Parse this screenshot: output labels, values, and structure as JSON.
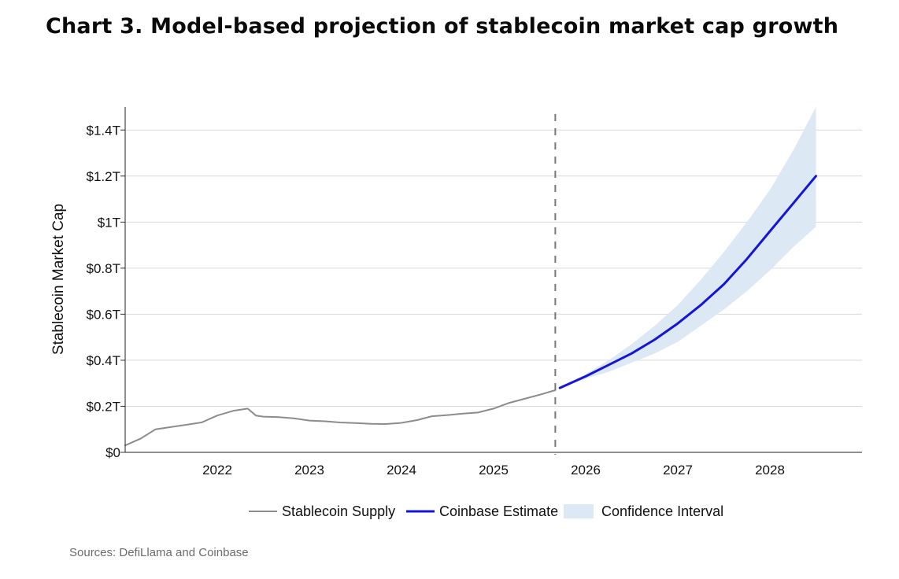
{
  "chart_data": {
    "type": "line",
    "title": "Chart 3. Model-based projection of stablecoin market cap growth",
    "ylabel": "Stablecoin Market Cap",
    "xlabel": "",
    "x_range": [
      2021.0,
      2029.0
    ],
    "ylim": [
      0,
      1.5
    ],
    "y_ticks": [
      {
        "value": 0,
        "label": "$0"
      },
      {
        "value": 0.2,
        "label": "$0.2T"
      },
      {
        "value": 0.4,
        "label": "$0.4T"
      },
      {
        "value": 0.6,
        "label": "$0.6T"
      },
      {
        "value": 0.8,
        "label": "$0.8T"
      },
      {
        "value": 1.0,
        "label": "$1T"
      },
      {
        "value": 1.2,
        "label": "$1.2T"
      },
      {
        "value": 1.4,
        "label": "$1.4T"
      }
    ],
    "x_ticks": [
      {
        "value": 2022,
        "label": "2022"
      },
      {
        "value": 2023,
        "label": "2023"
      },
      {
        "value": 2024,
        "label": "2024"
      },
      {
        "value": 2025,
        "label": "2025"
      },
      {
        "value": 2026,
        "label": "2026"
      },
      {
        "value": 2027,
        "label": "2027"
      },
      {
        "value": 2028,
        "label": "2028"
      }
    ],
    "grid": "horizontal",
    "legend_position": "bottom",
    "divider_x": 2025.67,
    "series": [
      {
        "name": "Stablecoin Supply",
        "color": "#8c8c8c",
        "points": [
          [
            2021.0,
            0.03
          ],
          [
            2021.17,
            0.06
          ],
          [
            2021.33,
            0.1
          ],
          [
            2021.5,
            0.11
          ],
          [
            2021.67,
            0.12
          ],
          [
            2021.83,
            0.13
          ],
          [
            2022.0,
            0.16
          ],
          [
            2022.17,
            0.18
          ],
          [
            2022.33,
            0.19
          ],
          [
            2022.42,
            0.16
          ],
          [
            2022.5,
            0.155
          ],
          [
            2022.67,
            0.153
          ],
          [
            2022.83,
            0.148
          ],
          [
            2023.0,
            0.138
          ],
          [
            2023.17,
            0.135
          ],
          [
            2023.33,
            0.13
          ],
          [
            2023.5,
            0.127
          ],
          [
            2023.67,
            0.124
          ],
          [
            2023.83,
            0.123
          ],
          [
            2024.0,
            0.128
          ],
          [
            2024.17,
            0.14
          ],
          [
            2024.33,
            0.157
          ],
          [
            2024.5,
            0.162
          ],
          [
            2024.67,
            0.168
          ],
          [
            2024.83,
            0.173
          ],
          [
            2025.0,
            0.19
          ],
          [
            2025.17,
            0.215
          ],
          [
            2025.33,
            0.232
          ],
          [
            2025.5,
            0.25
          ],
          [
            2025.67,
            0.27
          ]
        ]
      },
      {
        "name": "Coinbase Estimate",
        "color": "#1515d6",
        "points": [
          [
            2025.72,
            0.28
          ],
          [
            2026.0,
            0.33
          ],
          [
            2026.25,
            0.38
          ],
          [
            2026.5,
            0.43
          ],
          [
            2026.75,
            0.49
          ],
          [
            2027.0,
            0.56
          ],
          [
            2027.25,
            0.64
          ],
          [
            2027.5,
            0.73
          ],
          [
            2027.75,
            0.84
          ],
          [
            2028.0,
            0.96
          ],
          [
            2028.25,
            1.08
          ],
          [
            2028.5,
            1.2
          ]
        ]
      },
      {
        "name": "Confidence Interval",
        "color": "#dde8f5",
        "lower": [
          [
            2025.72,
            0.28
          ],
          [
            2026.0,
            0.32
          ],
          [
            2026.25,
            0.35
          ],
          [
            2026.5,
            0.39
          ],
          [
            2026.75,
            0.43
          ],
          [
            2027.0,
            0.48
          ],
          [
            2027.25,
            0.55
          ],
          [
            2027.5,
            0.62
          ],
          [
            2027.75,
            0.7
          ],
          [
            2028.0,
            0.79
          ],
          [
            2028.25,
            0.89
          ],
          [
            2028.5,
            0.98
          ]
        ],
        "upper": [
          [
            2025.72,
            0.28
          ],
          [
            2026.0,
            0.34
          ],
          [
            2026.25,
            0.4
          ],
          [
            2026.5,
            0.47
          ],
          [
            2026.75,
            0.55
          ],
          [
            2027.0,
            0.64
          ],
          [
            2027.25,
            0.75
          ],
          [
            2027.5,
            0.87
          ],
          [
            2027.75,
            1.0
          ],
          [
            2028.0,
            1.14
          ],
          [
            2028.25,
            1.31
          ],
          [
            2028.5,
            1.5
          ]
        ]
      }
    ],
    "source": "Sources: DefiLlama and Coinbase"
  }
}
